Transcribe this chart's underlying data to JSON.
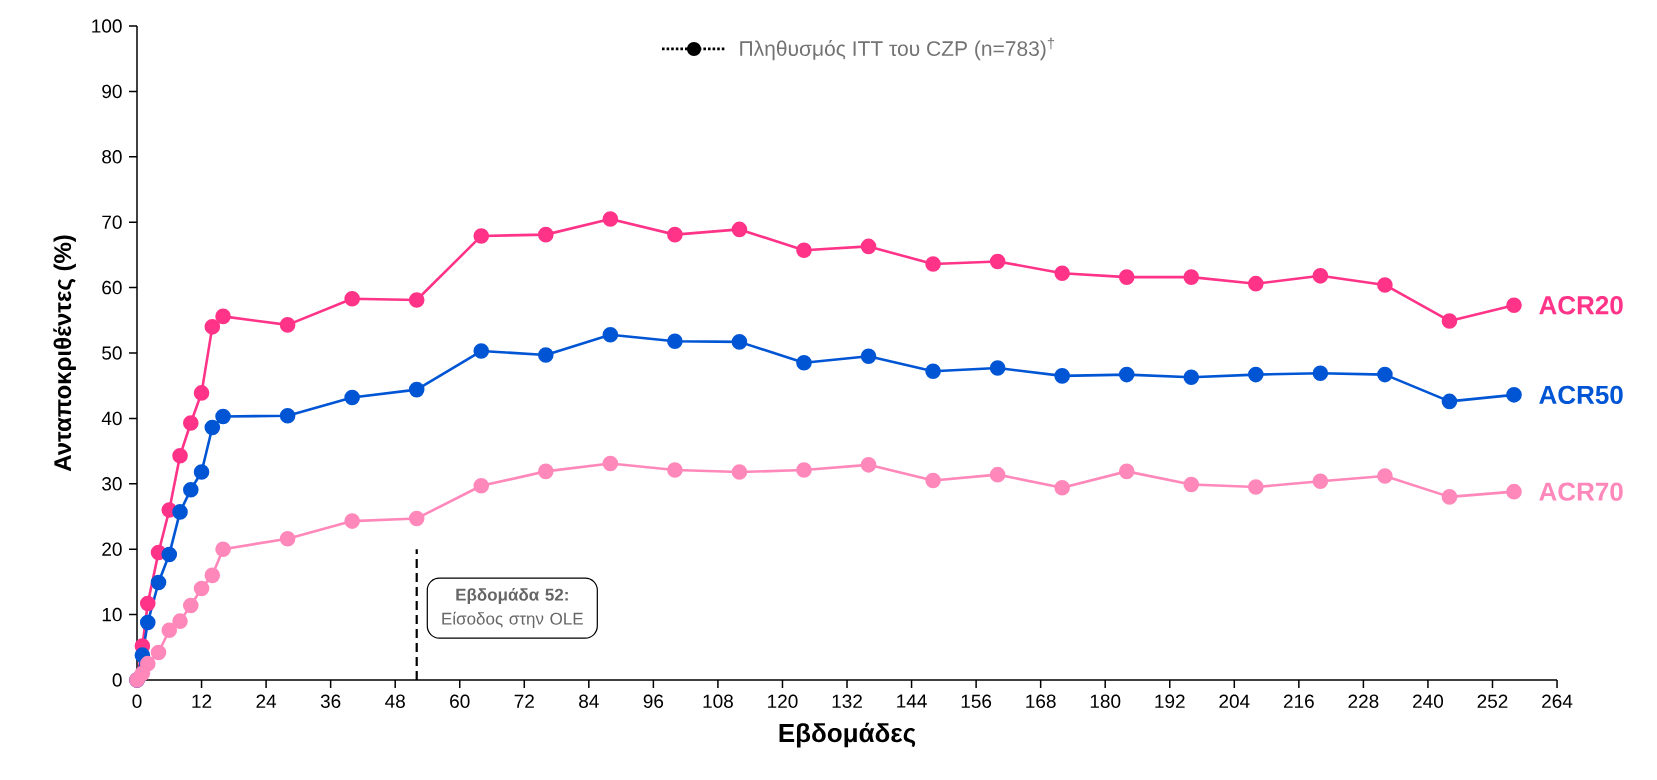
{
  "chart_data": {
    "type": "line",
    "xlabel": "Εβδομάδες",
    "ylabel": "Ανταποκριθέντες (%)",
    "x": [
      0,
      1,
      2,
      4,
      6,
      8,
      10,
      12,
      14,
      16,
      28,
      40,
      52,
      64,
      76,
      88,
      100,
      112,
      124,
      136,
      148,
      160,
      172,
      184,
      196,
      208,
      220,
      232,
      244,
      256
    ],
    "series": [
      {
        "name": "ACR20",
        "color": "#ff3388",
        "values": [
          0,
          5.2,
          11.7,
          19.5,
          26,
          34.3,
          39.3,
          43.9,
          54,
          55.6,
          54.3,
          58.3,
          58.1,
          67.9,
          68.1,
          70.5,
          68.1,
          68.9,
          65.7,
          66.3,
          63.6,
          64,
          62.2,
          61.6,
          61.6,
          60.6,
          61.8,
          60.4,
          54.9,
          57.3
        ]
      },
      {
        "name": "ACR50",
        "color": "#0055d4",
        "values": [
          0,
          3.8,
          8.8,
          14.9,
          19.2,
          25.7,
          29.1,
          31.8,
          38.6,
          40.3,
          40.4,
          43.2,
          44.4,
          50.3,
          49.7,
          52.8,
          51.8,
          51.7,
          48.5,
          49.5,
          47.2,
          47.7,
          46.5,
          46.7,
          46.3,
          46.7,
          46.9,
          46.7,
          42.6,
          43.6
        ]
      },
      {
        "name": "ACR70",
        "color": "#ff88bb",
        "values": [
          0,
          1,
          2.5,
          4.2,
          7.6,
          9,
          11.4,
          14,
          16,
          20,
          21.6,
          24.3,
          24.7,
          29.7,
          31.9,
          33.1,
          32.1,
          31.8,
          32.1,
          32.9,
          30.5,
          31.4,
          29.4,
          31.9,
          29.9,
          29.5,
          30.4,
          31.2,
          28,
          28.8
        ]
      }
    ],
    "xlim": [
      0,
      264
    ],
    "ylim": [
      0,
      100
    ],
    "xticks": [
      0,
      12,
      24,
      36,
      48,
      60,
      72,
      84,
      96,
      108,
      120,
      132,
      144,
      156,
      168,
      180,
      192,
      204,
      216,
      228,
      240,
      252,
      264
    ],
    "yticks": [
      0,
      10,
      20,
      30,
      40,
      50,
      60,
      70,
      80,
      90,
      100
    ],
    "ref_lines": [
      {
        "axis": "x",
        "value": 52,
        "label": "**Εβδομάδα 52:** Είσοδος στην OLE",
        "color": "#000000",
        "line_style": "dashed"
      }
    ],
    "annotations": [
      "Πληθυσμός ITT του CZP (n=783)$^{†}$"
    ],
    "marker": "circle",
    "line_style": "solid",
    "grid": false
  }
}
